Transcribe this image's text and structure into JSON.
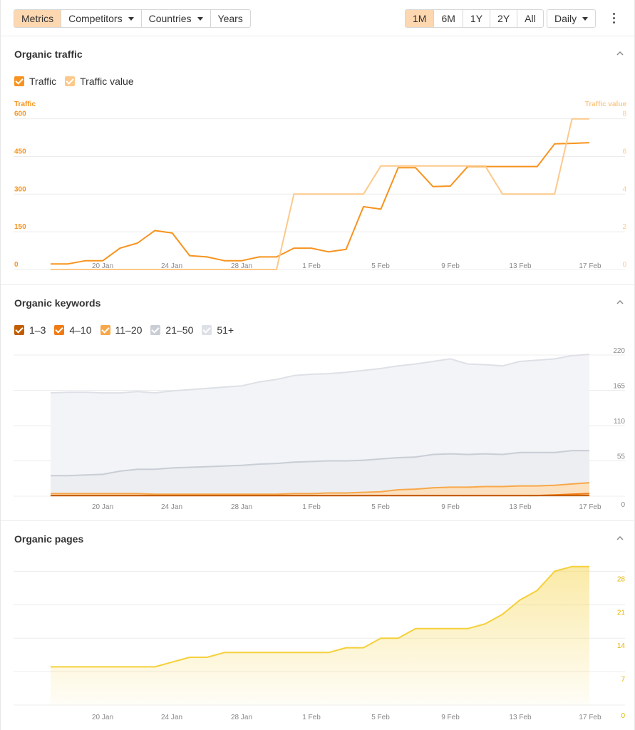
{
  "toolbar": {
    "left_tabs": [
      {
        "label": "Metrics",
        "active": true
      },
      {
        "label": "Competitors",
        "dropdown": true
      },
      {
        "label": "Countries",
        "dropdown": true
      },
      {
        "label": "Years"
      }
    ],
    "ranges": [
      {
        "label": "1M",
        "active": true
      },
      {
        "label": "6M"
      },
      {
        "label": "1Y"
      },
      {
        "label": "2Y"
      },
      {
        "label": "All"
      }
    ],
    "granularity": "Daily"
  },
  "colors": {
    "traffic": "#f7931e",
    "traffic_value": "#fcc98a",
    "kw_1_3": "#c15d00",
    "kw_4_10": "#f07b15",
    "kw_11_20": "#f7a84a",
    "kw_21_50": "#d0d5dd",
    "kw_51": "#e0e3e9",
    "pages": "#f5d03a"
  },
  "sections": {
    "traffic": {
      "title": "Organic traffic",
      "legend": [
        {
          "label": "Traffic",
          "color": "#f7931e"
        },
        {
          "label": "Traffic value",
          "color": "#fcc98a"
        }
      ]
    },
    "keywords": {
      "title": "Organic keywords",
      "legend": [
        {
          "label": "1–3",
          "color": "#c15d00"
        },
        {
          "label": "4–10",
          "color": "#f07b15"
        },
        {
          "label": "11–20",
          "color": "#f7a84a"
        },
        {
          "label": "21–50",
          "color": "#c9ced6"
        },
        {
          "label": "51+",
          "color": "#dde0e6"
        }
      ]
    },
    "pages": {
      "title": "Organic pages"
    }
  },
  "chart_data": [
    {
      "type": "line",
      "title": "Organic traffic",
      "x_ticks": [
        "20 Jan",
        "24 Jan",
        "28 Jan",
        "1 Feb",
        "5 Feb",
        "9 Feb",
        "13 Feb",
        "17 Feb"
      ],
      "x_range": [
        "16 Jan",
        "17 Feb"
      ],
      "ylabel_left": "Traffic",
      "ylabel_right": "Traffic value",
      "y_left_ticks": [
        0,
        150,
        300,
        450,
        600
      ],
      "y_right_ticks": [
        0,
        2,
        4,
        6,
        8
      ],
      "ylim_left": [
        0,
        650
      ],
      "ylim_right": [
        0,
        8.67
      ],
      "grid": true,
      "series": [
        {
          "name": "Traffic",
          "axis": "left",
          "color": "#f7931e",
          "values": [
            22,
            22,
            35,
            35,
            85,
            105,
            155,
            145,
            55,
            50,
            35,
            35,
            50,
            50,
            85,
            85,
            70,
            80,
            250,
            240,
            405,
            405,
            330,
            332,
            410,
            410,
            410,
            410,
            410,
            500,
            502,
            505
          ]
        },
        {
          "name": "Traffic value",
          "axis": "right",
          "color": "#fcc98a",
          "values": [
            0,
            0,
            0,
            0,
            0,
            0,
            0,
            0,
            0,
            0,
            0,
            0,
            0,
            0,
            4,
            4,
            4,
            4,
            4,
            5.5,
            5.5,
            5.5,
            5.5,
            5.5,
            5.5,
            5.5,
            4,
            4,
            4,
            4,
            8,
            8
          ]
        }
      ]
    },
    {
      "type": "area",
      "title": "Organic keywords",
      "x_ticks": [
        "20 Jan",
        "24 Jan",
        "28 Jan",
        "1 Feb",
        "5 Feb",
        "9 Feb",
        "13 Feb",
        "17 Feb"
      ],
      "y_right_ticks": [
        0,
        55,
        110,
        165,
        220
      ],
      "ylim": [
        0,
        220
      ],
      "stacked": true,
      "series": [
        {
          "name": "1–3",
          "color": "#c15d00",
          "values": [
            1,
            1,
            1,
            1,
            1,
            1,
            1,
            1,
            1,
            1,
            1,
            1,
            1,
            1,
            1,
            1,
            1,
            1,
            1,
            1,
            1,
            1,
            1,
            1,
            1,
            1,
            1,
            1,
            1,
            1,
            1,
            1
          ]
        },
        {
          "name": "4–10",
          "color": "#f07b15",
          "values": [
            0,
            0,
            0,
            0,
            0,
            0,
            0,
            0,
            0,
            0,
            0,
            0,
            0,
            0,
            0,
            0,
            0,
            0,
            0,
            0,
            0,
            0,
            0,
            0,
            0,
            0,
            0,
            0,
            0,
            1,
            2,
            3
          ]
        },
        {
          "name": "11–20",
          "color": "#f7a84a",
          "values": [
            3,
            3,
            3,
            3,
            3,
            3,
            2,
            2,
            2,
            2,
            2,
            2,
            2,
            2,
            3,
            3,
            4,
            4,
            5,
            6,
            9,
            10,
            12,
            13,
            13,
            14,
            14,
            15,
            15,
            15,
            16,
            17
          ]
        },
        {
          "name": "21–50",
          "color": "#c9ced6",
          "values": [
            28,
            28,
            29,
            30,
            35,
            38,
            39,
            41,
            42,
            43,
            44,
            45,
            47,
            48,
            49,
            50,
            50,
            50,
            50,
            51,
            50,
            50,
            52,
            52,
            51,
            51,
            50,
            52,
            52,
            51,
            52,
            50
          ]
        },
        {
          "name": "51+",
          "color": "#dde0e6",
          "values": [
            129,
            130,
            129,
            127,
            122,
            121,
            119,
            120,
            121,
            122,
            123,
            124,
            128,
            131,
            135,
            136,
            136,
            138,
            140,
            141,
            143,
            145,
            145,
            148,
            141,
            139,
            138,
            142,
            144,
            146,
            148,
            150
          ]
        }
      ]
    },
    {
      "type": "area",
      "title": "Organic pages",
      "x_ticks": [
        "20 Jan",
        "24 Jan",
        "28 Jan",
        "1 Feb",
        "5 Feb",
        "9 Feb",
        "13 Feb",
        "17 Feb"
      ],
      "y_right_ticks": [
        0,
        7,
        14,
        21,
        28
      ],
      "ylim": [
        0,
        28
      ],
      "series": [
        {
          "name": "Organic pages",
          "color": "#f5d03a",
          "values": [
            8,
            8,
            8,
            8,
            8,
            8,
            8,
            9,
            10,
            10,
            11,
            11,
            11,
            11,
            11,
            11,
            11,
            12,
            12,
            14,
            14,
            16,
            16,
            16,
            16,
            17,
            19,
            22,
            24,
            28,
            29,
            29
          ]
        }
      ]
    }
  ]
}
